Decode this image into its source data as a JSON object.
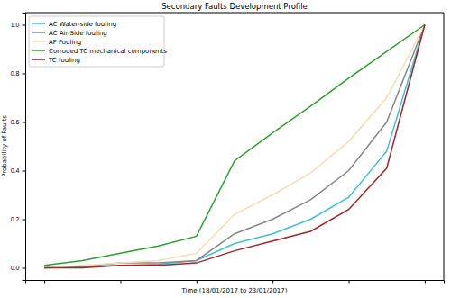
{
  "chart_data": {
    "type": "line",
    "title": "Secondary Faults Development Profile",
    "x_label": "Time (18/01/2017 to 23/01/2017)",
    "y_label": "Probability of Faults",
    "x": [
      0,
      1,
      2,
      3,
      4,
      5,
      6,
      7,
      8,
      9,
      10
    ],
    "xlim": [
      -0.5,
      10.5
    ],
    "xticks": [
      0,
      2,
      4,
      6,
      8,
      10
    ],
    "ylim": [
      -0.05,
      1.05
    ],
    "yticks": [
      {
        "value": 0,
        "label": "0.0"
      },
      {
        "value": 0.2,
        "label": "0.2"
      },
      {
        "value": 0.4,
        "label": "0.4"
      },
      {
        "value": 0.6,
        "label": "0.6"
      },
      {
        "value": 0.8,
        "label": "0.8"
      },
      {
        "value": 1,
        "label": "1.0"
      }
    ],
    "tick_labels": "y",
    "grid": false,
    "legend": "upper left",
    "series": [
      {
        "name": "AC Water-side fouling",
        "color": "#3cc1d4",
        "values": [
          0,
          0.005,
          0.01,
          0.015,
          0.03,
          0.1,
          0.14,
          0.2,
          0.29,
          0.48,
          1.0
        ]
      },
      {
        "name": "AC Air-Side fouling",
        "color": "#888888",
        "values": [
          0,
          0.005,
          0.02,
          0.02,
          0.03,
          0.14,
          0.2,
          0.28,
          0.4,
          0.6,
          1.0
        ]
      },
      {
        "name": "AF Fouling",
        "color": "#f5deb3",
        "values": [
          0,
          0.01,
          0.02,
          0.03,
          0.06,
          0.22,
          0.3,
          0.39,
          0.52,
          0.7,
          1.0
        ]
      },
      {
        "name": "Corroded TC mechanical components",
        "color": "#2ca02c",
        "values": [
          0.01,
          0.03,
          0.06,
          0.09,
          0.13,
          0.44,
          0.555,
          0.665,
          0.78,
          0.89,
          1.0
        ]
      },
      {
        "name": "TC fouling",
        "color": "#a0262c",
        "values": [
          0,
          0,
          0.01,
          0.01,
          0.02,
          0.07,
          0.11,
          0.15,
          0.24,
          0.41,
          1.0
        ]
      }
    ]
  }
}
